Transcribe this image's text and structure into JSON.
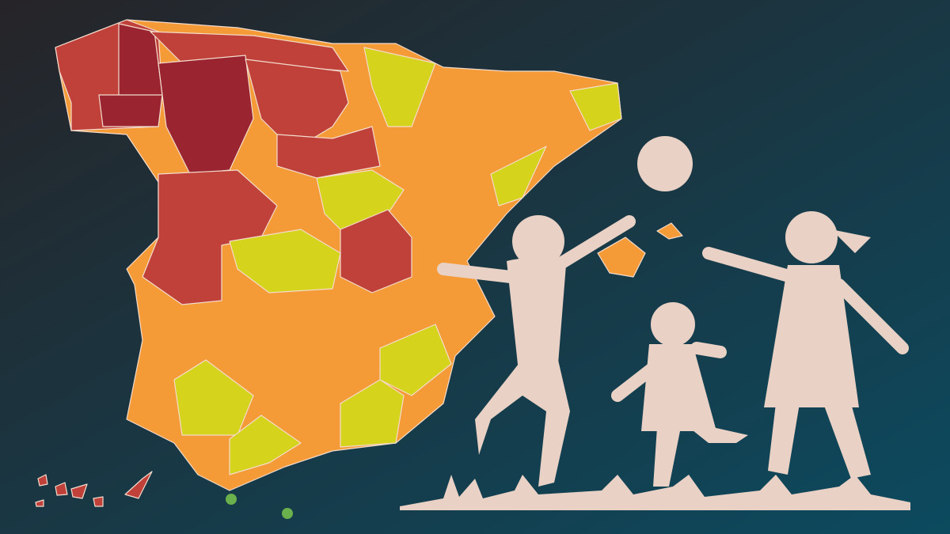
{
  "colors": {
    "background_start": "#262428",
    "background_end": "#0c4a5f",
    "dark_red": "#9a2430",
    "red": "#c0413a",
    "orange": "#f49a36",
    "yellow": "#d5d31b",
    "green": "#6ab04c",
    "silhouette": "#e9d1c5",
    "border": "#f3dccd"
  },
  "icons": {
    "ball": "ball-icon",
    "children": "children-silhouette-icon"
  }
}
